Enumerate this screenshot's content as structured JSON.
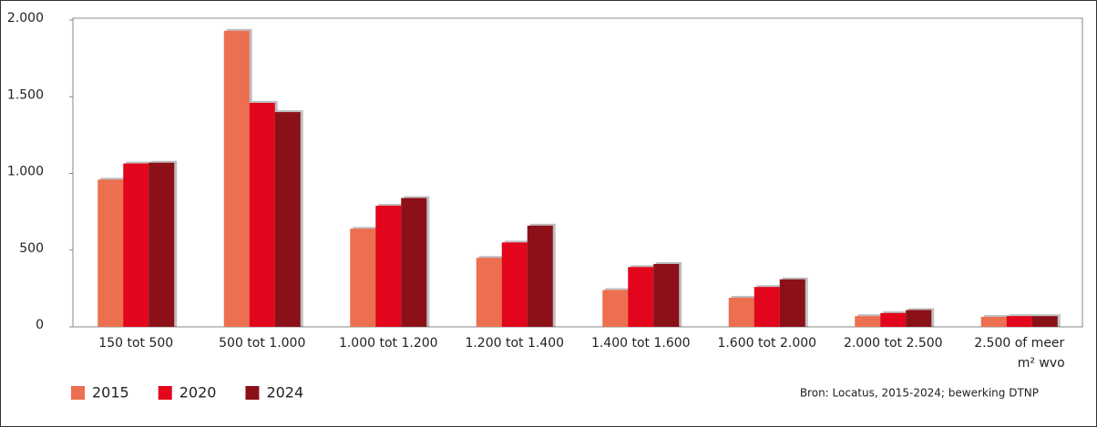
{
  "chart_data": {
    "type": "bar",
    "categories": [
      "150 tot 500",
      "500 tot 1.000",
      "1.000 tot 1.200",
      "1.200 tot 1.400",
      "1.400 tot 1.600",
      "1.600 tot 2.000",
      "2.000 tot 2.500",
      "2.500 of meer"
    ],
    "x_label": "m² wvo",
    "series": [
      {
        "name": "2015",
        "color": "#ec6f4f",
        "values": [
          960,
          1930,
          640,
          450,
          240,
          190,
          70,
          65
        ]
      },
      {
        "name": "2020",
        "color": "#e3051b",
        "values": [
          1065,
          1460,
          790,
          550,
          390,
          260,
          90,
          70
        ]
      },
      {
        "name": "2024",
        "color": "#8b1018",
        "values": [
          1070,
          1400,
          840,
          660,
          410,
          310,
          110,
          70
        ]
      }
    ],
    "ylim": [
      0,
      2000
    ],
    "yticks": [
      {
        "value": 0,
        "label": "0"
      },
      {
        "value": 500,
        "label": "500"
      },
      {
        "value": 1000,
        "label": "1.000"
      },
      {
        "value": 1500,
        "label": "1.500"
      },
      {
        "value": 2000,
        "label": "2.000"
      }
    ],
    "grid": false,
    "legend": "bottom-left",
    "source": "Bron: Locatus, 2015-2024; bewerking DTNP"
  }
}
